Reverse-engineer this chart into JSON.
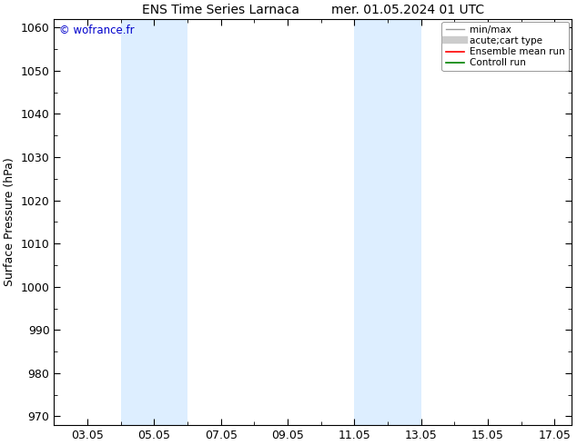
{
  "title_left": "ENS Time Series Larnaca",
  "title_right": "mer. 01.05.2024 01 UTC",
  "ylabel": "Surface Pressure (hPa)",
  "ylim": [
    968,
    1062
  ],
  "yticks": [
    970,
    980,
    990,
    1000,
    1010,
    1020,
    1030,
    1040,
    1050,
    1060
  ],
  "xtick_labels": [
    "03.05",
    "05.05",
    "07.05",
    "09.05",
    "11.05",
    "13.05",
    "15.05",
    "17.05"
  ],
  "xtick_positions": [
    3,
    5,
    7,
    9,
    11,
    13,
    15,
    17
  ],
  "xlim": [
    2.0,
    17.5
  ],
  "shaded_bands": [
    {
      "xmin": 4.0,
      "xmax": 6.0,
      "color": "#ddeeff"
    },
    {
      "xmin": 11.0,
      "xmax": 13.0,
      "color": "#ddeeff"
    }
  ],
  "copyright_text": "© wofrance.fr",
  "copyright_color": "#0000cc",
  "legend_entries": [
    {
      "label": "min/max",
      "color": "#999999",
      "lw": 1.0
    },
    {
      "label": "acute;cart type",
      "color": "#cccccc",
      "lw": 6
    },
    {
      "label": "Ensemble mean run",
      "color": "#ff0000",
      "lw": 1.2
    },
    {
      "label": "Controll run",
      "color": "#008000",
      "lw": 1.2
    }
  ],
  "background_color": "#ffffff",
  "plot_bg_color": "#ffffff",
  "title_fontsize": 10,
  "axis_label_fontsize": 9,
  "tick_fontsize": 9,
  "legend_fontsize": 7.5
}
